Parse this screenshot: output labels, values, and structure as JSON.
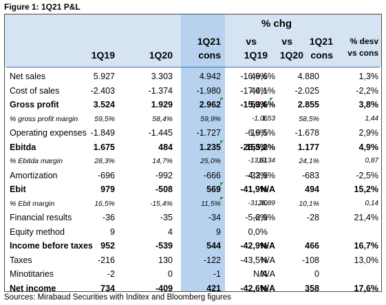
{
  "figure_title": "Figure 1: 1Q21 P&L",
  "header": {
    "group_label": "% chg",
    "columns": [
      {
        "line1": "",
        "line2": "1Q19"
      },
      {
        "line1": "",
        "line2": "1Q20"
      },
      {
        "line1": "1Q21",
        "line2": "cons"
      },
      {
        "line1": "vs",
        "line2": "1Q19"
      },
      {
        "line1": "vs",
        "line2": "1Q20"
      },
      {
        "line1": "1Q21",
        "line2": "cons"
      },
      {
        "line1": "% desv",
        "line2": "vs cons"
      }
    ]
  },
  "rows": [
    {
      "label": "Net sales",
      "style": "normal",
      "values": [
        "5.927",
        "3.303",
        "4.942",
        "-16,6%",
        "49,6%",
        "4.880",
        "1,3%"
      ]
    },
    {
      "label": "Cost of sales",
      "style": "normal",
      "values": [
        "-2.403",
        "-1.374",
        "-1.980",
        "-17,6%",
        "44,1%",
        "-2.025",
        "-2,2%"
      ]
    },
    {
      "label": "Gross profit",
      "style": "bold",
      "values": [
        "3.524",
        "1.929",
        "2.962",
        "-15,9%",
        "53,6%",
        "2.855",
        "3,8%"
      ]
    },
    {
      "label": "% gross profit margin",
      "style": "italic",
      "values": [
        "59,5%",
        "58,4%",
        "59,9%",
        "-1,06",
        "1,53",
        "58,5%",
        "1,44"
      ]
    },
    {
      "label": "Operating expenses",
      "style": "normal",
      "values": [
        "-1.849",
        "-1.445",
        "-1.727",
        "-6,6%",
        "19,5%",
        "-1.678",
        "2,9%"
      ]
    },
    {
      "label": "Ebitda",
      "style": "bold",
      "values": [
        "1.675",
        "484",
        "1.235",
        "-26,3%",
        "155,2%",
        "1.177",
        "4,9%"
      ]
    },
    {
      "label": "% Ebitda margin",
      "style": "italic",
      "values": [
        "28,3%",
        "14,7%",
        "25,0%",
        "-13,61",
        "10,34",
        "24,1%",
        "0,87"
      ]
    },
    {
      "label": "Amortization",
      "style": "normal",
      "values": [
        "-696",
        "-992",
        "-666",
        "-4,3%",
        "-32,9%",
        "-683",
        "-2,5%"
      ]
    },
    {
      "label": "Ebit",
      "style": "bold",
      "values": [
        "979",
        "-508",
        "569",
        "-41,9%",
        "N/A",
        "494",
        "15,2%"
      ]
    },
    {
      "label": "% Ebit margin",
      "style": "italic",
      "values": [
        "16,5%",
        "-15,4%",
        "11,5%",
        "-31,90",
        "26,89",
        "10,1%",
        "0,14"
      ]
    },
    {
      "label": "Financial results",
      "style": "normal",
      "values": [
        "-36",
        "-35",
        "-34",
        "-5,6%",
        "-2,9%",
        "-28",
        "21,4%"
      ]
    },
    {
      "label": "Equity method",
      "style": "normal",
      "values": [
        "9",
        "4",
        "9",
        "0,0%",
        "",
        "",
        ""
      ]
    },
    {
      "label": "Income before taxes",
      "style": "bold",
      "values": [
        "952",
        "-539",
        "544",
        "-42,9%",
        "N/A",
        "466",
        "16,7%"
      ]
    },
    {
      "label": "Taxes",
      "style": "normal",
      "values": [
        "-216",
        "130",
        "-122",
        "-43,5%",
        "N/A",
        "-108",
        "13,0%"
      ]
    },
    {
      "label": "Minotitaries",
      "style": "normal",
      "values": [
        "-2",
        "0",
        "-1",
        "N/A",
        "N/A",
        "0",
        ""
      ]
    },
    {
      "label": "Net income",
      "style": "bold",
      "values": [
        "734",
        "-409",
        "421",
        "-42,6%",
        "N/A",
        "358",
        "17,6%"
      ]
    }
  ],
  "source": "Sources: Mirabaud Securities with Inditex and Bloomberg figures",
  "colors": {
    "header_band": "#d6e3f3",
    "consensus_column": "#b7d2ee",
    "marker": "#2c9a32"
  }
}
